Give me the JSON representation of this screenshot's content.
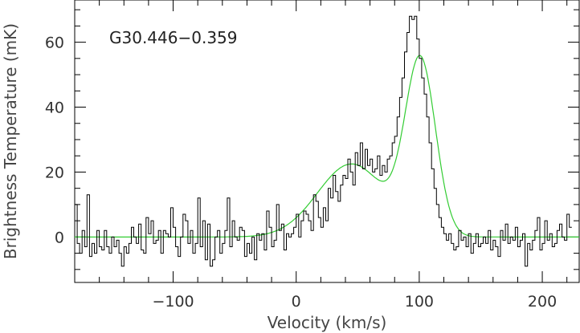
{
  "chart_data": {
    "type": "line",
    "title": "",
    "annotation": "G30.446−0.359",
    "xlabel": "Velocity (km/s)",
    "ylabel": "Brightness Temperature (mK)",
    "xlim": [
      -180,
      230
    ],
    "ylim": [
      -14,
      73
    ],
    "x_ticks": [
      -100,
      0,
      100,
      200
    ],
    "y_ticks": [
      0,
      20,
      40,
      60
    ],
    "x_tick_labels": [
      "−100",
      "0",
      "100",
      "200"
    ],
    "y_tick_labels": [
      "0",
      "20",
      "40",
      "60"
    ],
    "grid": false,
    "legend": "none",
    "series": [
      {
        "style": "step",
        "color": "#000000",
        "x_start": -180,
        "x_step": 2,
        "values": [
          10,
          -2,
          -5,
          2,
          -3,
          13,
          -6,
          -2,
          -5,
          2,
          -3,
          -4,
          2,
          -3,
          -5,
          0,
          -3,
          -1,
          -5,
          -9,
          -3,
          -5,
          -2,
          3,
          0,
          -2,
          4,
          -4,
          -5,
          6,
          1,
          5,
          -2,
          -1,
          2,
          -5,
          2,
          1,
          0,
          9,
          3,
          -3,
          -6,
          0,
          7,
          5,
          -2,
          2,
          -5,
          -2,
          12,
          -3,
          5,
          -7,
          4,
          -9,
          -7,
          0,
          2,
          -5,
          -2,
          2,
          12,
          -3,
          5,
          0,
          -1,
          3,
          2,
          -6,
          -2,
          -5,
          0,
          -7,
          1,
          -1,
          1,
          -4,
          8,
          3,
          -3,
          -1,
          10,
          2,
          4,
          -4,
          1,
          0,
          1,
          3,
          7,
          0,
          5,
          8,
          7,
          5,
          2,
          13,
          11,
          6,
          3,
          9,
          5,
          15,
          12,
          19,
          14,
          11,
          16,
          19,
          18,
          24,
          20,
          16,
          26,
          22,
          29,
          21,
          27,
          22,
          24,
          20,
          21,
          25,
          19,
          22,
          20,
          24,
          25,
          29,
          31,
          37,
          43,
          49,
          57,
          63,
          68,
          67,
          68,
          61,
          55,
          49,
          44,
          37,
          29,
          21,
          15,
          10,
          6,
          3,
          1,
          -1,
          1,
          -2,
          -4,
          -3,
          2,
          -1,
          0,
          -3,
          1,
          -5,
          -2,
          1,
          -3,
          -2,
          0,
          -2,
          2,
          -4,
          -1,
          -3,
          -6,
          2,
          -1,
          4,
          -2,
          0,
          -1,
          3,
          -3,
          -1,
          1,
          -9,
          -2,
          -4,
          -1,
          2,
          6,
          -4,
          -2,
          5,
          -1,
          1,
          -3,
          -2,
          2,
          4,
          0,
          -1,
          7,
          3
        ]
      },
      {
        "style": "fit",
        "color": "#33cc33",
        "components": [
          {
            "amplitude": 22.5,
            "center": 45,
            "fwhm": 65
          },
          {
            "amplitude": 53,
            "center": 101,
            "fwhm": 29
          }
        ]
      }
    ]
  }
}
